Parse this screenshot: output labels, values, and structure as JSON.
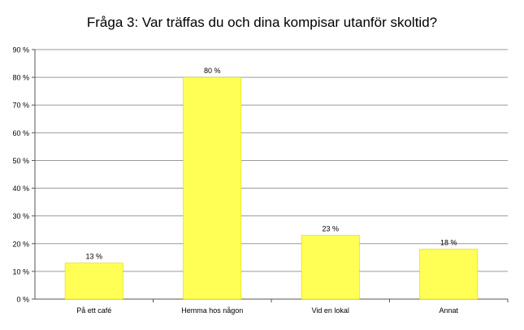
{
  "chart_data": {
    "type": "bar",
    "title": "Fråga 3: Var träffas du och dina kompisar utanför skoltid?",
    "categories": [
      "På ett café",
      "Hemma hos någon",
      "Vid en lokal",
      "Annat"
    ],
    "values": [
      13,
      80,
      23,
      18
    ],
    "value_labels": [
      "13 %",
      "80 %",
      "23 %",
      "18 %"
    ],
    "ylim": [
      0,
      90
    ],
    "yticks": [
      0,
      10,
      20,
      30,
      40,
      50,
      60,
      70,
      80,
      90
    ],
    "ytick_labels": [
      "0 %",
      "10 %",
      "20 %",
      "30 %",
      "40 %",
      "50 %",
      "60 %",
      "70 %",
      "80 %",
      "90 %"
    ],
    "xlabel": "",
    "ylabel": "",
    "grid": true,
    "legend": false,
    "bar_color": "#ffff55",
    "bar_edge_color": "#d8d800"
  }
}
